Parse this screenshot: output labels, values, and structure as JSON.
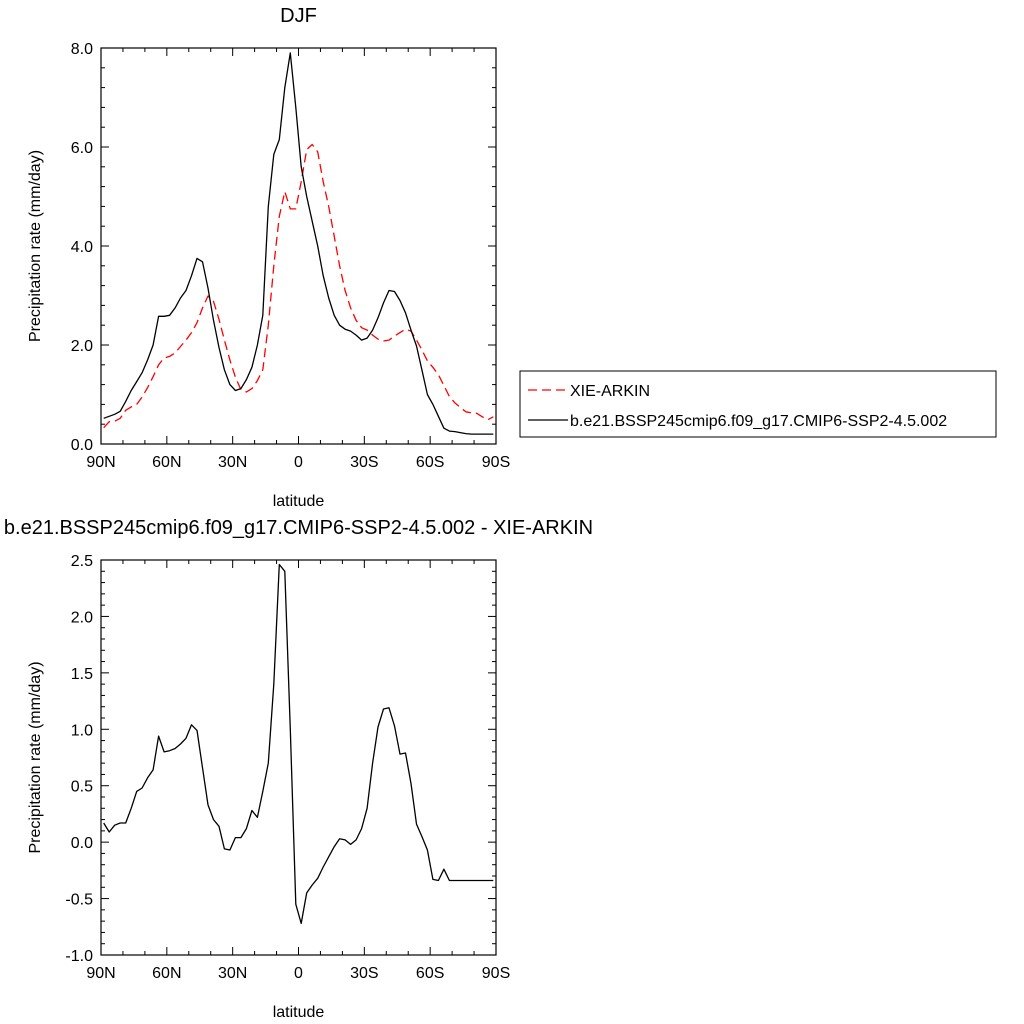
{
  "chart_data": [
    {
      "type": "line",
      "title": "DJF",
      "xlabel": "latitude",
      "ylabel": "Precipitation rate (mm/day)",
      "xlim": [
        -90,
        90
      ],
      "ylim": [
        0,
        8
      ],
      "x_ticks": [
        {
          "value": -90,
          "label": "90N"
        },
        {
          "value": -60,
          "label": "60N"
        },
        {
          "value": -30,
          "label": "30N"
        },
        {
          "value": 0,
          "label": "0"
        },
        {
          "value": 30,
          "label": "30S"
        },
        {
          "value": 60,
          "label": "60S"
        },
        {
          "value": 90,
          "label": "90S"
        }
      ],
      "y_ticks": [
        {
          "value": 0,
          "label": "0.0"
        },
        {
          "value": 2,
          "label": "2.0"
        },
        {
          "value": 4,
          "label": "4.0"
        },
        {
          "value": 6,
          "label": "6.0"
        },
        {
          "value": 8,
          "label": "8.0"
        }
      ],
      "legend": {
        "position": "right"
      },
      "series": [
        {
          "name": "XIE-ARKIN",
          "color": "#ff0000",
          "dash": "dashed",
          "x": [
            -88.75,
            -86.25,
            -83.75,
            -81.25,
            -78.75,
            -76.25,
            -73.75,
            -71.25,
            -68.75,
            -66.25,
            -63.75,
            -61.25,
            -58.75,
            -56.25,
            -53.75,
            -51.25,
            -48.75,
            -46.25,
            -43.75,
            -41.25,
            -38.75,
            -36.25,
            -33.75,
            -31.25,
            -28.75,
            -26.25,
            -23.75,
            -21.25,
            -18.75,
            -16.25,
            -13.75,
            -11.25,
            -8.75,
            -6.25,
            -3.75,
            -1.25,
            1.25,
            3.75,
            6.25,
            8.75,
            11.25,
            13.75,
            16.25,
            18.75,
            21.25,
            23.75,
            26.25,
            28.75,
            31.25,
            33.75,
            36.25,
            38.75,
            41.25,
            43.75,
            46.25,
            48.75,
            51.25,
            53.75,
            56.25,
            58.75,
            61.25,
            63.75,
            66.25,
            68.75,
            71.25,
            73.75,
            76.25,
            78.75,
            81.25,
            83.75,
            86.25,
            88.75
          ],
          "values": [
            0.33,
            0.45,
            0.46,
            0.52,
            0.68,
            0.75,
            0.8,
            0.95,
            1.14,
            1.36,
            1.6,
            1.74,
            1.77,
            1.84,
            1.97,
            2.1,
            2.25,
            2.45,
            2.75,
            2.99,
            2.88,
            2.52,
            2.1,
            1.7,
            1.35,
            1.1,
            1.05,
            1.12,
            1.28,
            1.5,
            2.4,
            3.6,
            4.6,
            5.1,
            4.75,
            4.75,
            5.3,
            5.95,
            6.05,
            5.9,
            5.3,
            4.8,
            4.2,
            3.6,
            3.1,
            2.75,
            2.5,
            2.35,
            2.3,
            2.2,
            2.12,
            2.08,
            2.1,
            2.18,
            2.25,
            2.32,
            2.28,
            2.1,
            1.9,
            1.68,
            1.55,
            1.4,
            1.18,
            0.96,
            0.83,
            0.74,
            0.65,
            0.63,
            0.62,
            0.55,
            0.49,
            0.55
          ]
        },
        {
          "name": "b.e21.BSSP245cmip6.f09_g17.CMIP6-SSP2-4.5.002",
          "color": "#000000",
          "dash": "solid",
          "x": [
            -88.75,
            -86.25,
            -83.75,
            -81.25,
            -78.75,
            -76.25,
            -73.75,
            -71.25,
            -68.75,
            -66.25,
            -63.75,
            -61.25,
            -58.75,
            -56.25,
            -53.75,
            -51.25,
            -48.75,
            -46.25,
            -43.75,
            -41.25,
            -38.75,
            -36.25,
            -33.75,
            -31.25,
            -28.75,
            -26.25,
            -23.75,
            -21.25,
            -18.75,
            -16.25,
            -13.75,
            -11.25,
            -8.75,
            -6.25,
            -3.75,
            -1.25,
            1.25,
            3.75,
            6.25,
            8.75,
            11.25,
            13.75,
            16.25,
            18.75,
            21.25,
            23.75,
            26.25,
            28.75,
            31.25,
            33.75,
            36.25,
            38.75,
            41.25,
            43.75,
            46.25,
            48.75,
            51.25,
            53.75,
            56.25,
            58.75,
            61.25,
            63.75,
            66.25,
            68.75,
            71.25,
            73.75,
            76.25,
            78.75,
            81.25,
            83.75,
            86.25,
            88.75
          ],
          "values": [
            0.52,
            0.56,
            0.6,
            0.66,
            0.86,
            1.08,
            1.26,
            1.44,
            1.7,
            2.0,
            2.58,
            2.58,
            2.6,
            2.75,
            2.95,
            3.1,
            3.4,
            3.75,
            3.68,
            3.15,
            2.5,
            1.95,
            1.5,
            1.2,
            1.08,
            1.12,
            1.3,
            1.55,
            2.0,
            2.6,
            4.8,
            5.85,
            6.15,
            7.2,
            7.9,
            6.8,
            5.6,
            5.0,
            4.5,
            4.0,
            3.4,
            2.95,
            2.6,
            2.4,
            2.32,
            2.28,
            2.2,
            2.1,
            2.14,
            2.3,
            2.55,
            2.85,
            3.1,
            3.08,
            2.9,
            2.65,
            2.3,
            1.98,
            1.5,
            1.0,
            0.8,
            0.56,
            0.32,
            0.26,
            0.25,
            0.23,
            0.21,
            0.2,
            0.2,
            0.2,
            0.2,
            0.2
          ]
        }
      ]
    },
    {
      "type": "line",
      "title": "b.e21.BSSP245cmip6.f09_g17.CMIP6-SSP2-4.5.002 - XIE-ARKIN",
      "xlabel": "latitude",
      "ylabel": "Precipitation rate (mm/day)",
      "xlim": [
        -90,
        90
      ],
      "ylim": [
        -1.0,
        2.5
      ],
      "x_ticks": [
        {
          "value": -90,
          "label": "90N"
        },
        {
          "value": -60,
          "label": "60N"
        },
        {
          "value": -30,
          "label": "30N"
        },
        {
          "value": 0,
          "label": "0"
        },
        {
          "value": 30,
          "label": "30S"
        },
        {
          "value": 60,
          "label": "60S"
        },
        {
          "value": 90,
          "label": "90S"
        }
      ],
      "y_ticks": [
        {
          "value": -1.0,
          "label": "-1.0"
        },
        {
          "value": -0.5,
          "label": "-0.5"
        },
        {
          "value": 0.0,
          "label": "0.0"
        },
        {
          "value": 0.5,
          "label": "0.5"
        },
        {
          "value": 1.0,
          "label": "1.0"
        },
        {
          "value": 1.5,
          "label": "1.5"
        },
        {
          "value": 2.0,
          "label": "2.0"
        },
        {
          "value": 2.5,
          "label": "2.5"
        }
      ],
      "series": [
        {
          "color": "#000000",
          "dash": "solid",
          "x": [
            -88.75,
            -86.25,
            -83.75,
            -81.25,
            -78.75,
            -76.25,
            -73.75,
            -71.25,
            -68.75,
            -66.25,
            -63.75,
            -61.25,
            -58.75,
            -56.25,
            -53.75,
            -51.25,
            -48.75,
            -46.25,
            -43.75,
            -41.25,
            -38.75,
            -36.25,
            -33.75,
            -31.25,
            -28.75,
            -26.25,
            -23.75,
            -21.25,
            -18.75,
            -16.25,
            -13.75,
            -11.25,
            -8.75,
            -6.25,
            -3.75,
            -1.25,
            1.25,
            3.75,
            6.25,
            8.75,
            11.25,
            13.75,
            16.25,
            18.75,
            21.25,
            23.75,
            26.25,
            28.75,
            31.25,
            33.75,
            36.25,
            38.75,
            41.25,
            43.75,
            46.25,
            48.75,
            51.25,
            53.75,
            56.25,
            58.75,
            61.25,
            63.75,
            66.25,
            68.75,
            71.25,
            73.75,
            76.25,
            78.75,
            81.25,
            83.75,
            86.25,
            88.75
          ],
          "values": [
            0.17,
            0.09,
            0.15,
            0.17,
            0.17,
            0.3,
            0.45,
            0.48,
            0.57,
            0.64,
            0.94,
            0.8,
            0.81,
            0.83,
            0.87,
            0.92,
            1.04,
            0.99,
            0.66,
            0.33,
            0.2,
            0.14,
            -0.06,
            -0.07,
            0.04,
            0.04,
            0.12,
            0.28,
            0.22,
            0.45,
            0.7,
            1.4,
            2.46,
            2.4,
            1.0,
            -0.55,
            -0.72,
            -0.45,
            -0.38,
            -0.32,
            -0.22,
            -0.13,
            -0.04,
            0.03,
            0.02,
            -0.02,
            0.02,
            0.12,
            0.3,
            0.7,
            1.02,
            1.18,
            1.19,
            1.03,
            0.78,
            0.79,
            0.52,
            0.16,
            0.05,
            -0.07,
            -0.33,
            -0.34,
            -0.24,
            -0.34,
            -0.34,
            -0.34,
            -0.34,
            -0.34,
            -0.34,
            -0.34,
            -0.34,
            -0.34
          ]
        }
      ]
    }
  ]
}
